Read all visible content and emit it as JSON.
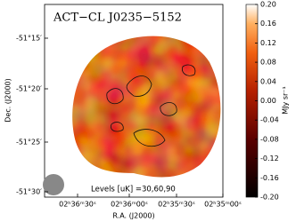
{
  "chart_data": {
    "type": "image",
    "title": "ACT−CL J0235−5152",
    "xlabel": "R.A. (J2000)",
    "ylabel": "Dec. (J2000)",
    "xticklabels": [
      "02ʰ36ᵐ30ˢ",
      "02ʰ36ᵐ00ˢ",
      "02ʰ35ᵐ30ˢ",
      "02ʰ35ᵐ00ˢ"
    ],
    "yticklabels": [
      "-51°15′",
      "-51°20′",
      "-51°25′",
      "-51°30′"
    ],
    "annotation": "Levels [uK] =30,60,90",
    "colorbar_label": "MJy sr⁻¹",
    "clim": [
      -0.2,
      0.2
    ],
    "cticks": [
      {
        "value": 0.2,
        "label": "0.20"
      },
      0.16,
      0.12,
      0.08,
      0.04,
      {
        "value": 0,
        "label": "0.00"
      },
      -0.04,
      -0.08,
      -0.12,
      -0.16,
      {
        "value": -0.2,
        "label": "-0.20"
      }
    ]
  }
}
